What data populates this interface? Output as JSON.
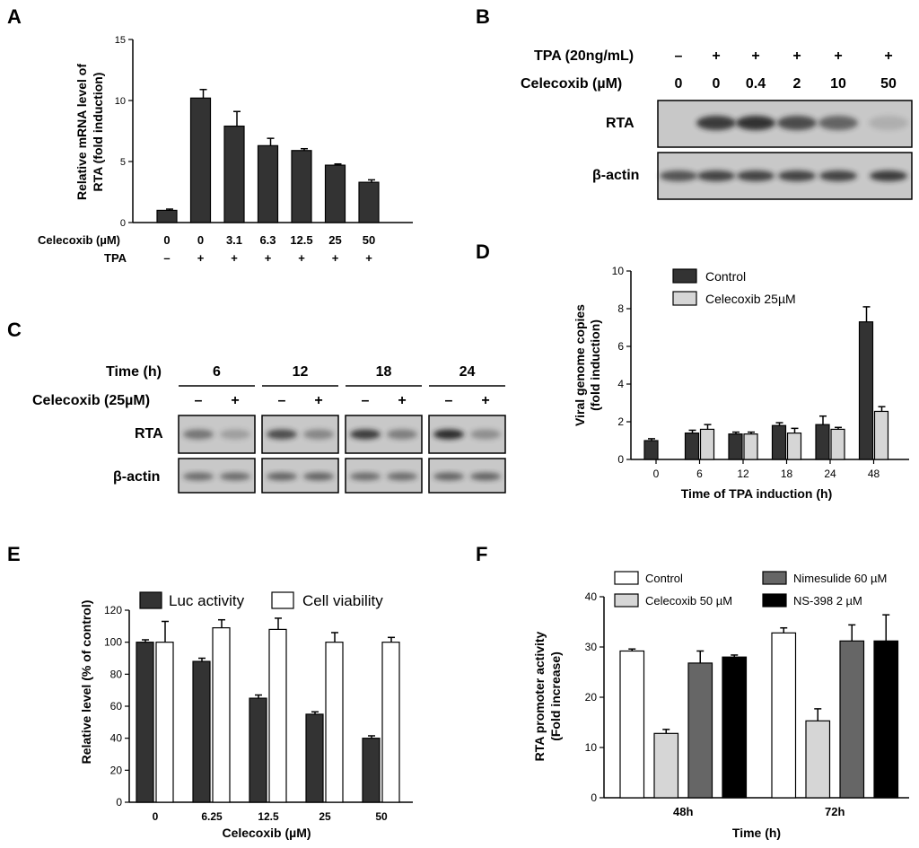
{
  "panels": {
    "A": "A",
    "B": "B",
    "C": "C",
    "D": "D",
    "E": "E",
    "F": "F"
  },
  "colors": {
    "dark_bar": "#333333",
    "light_bar": "#d6d6d6",
    "mid_bar": "#666666",
    "black_bar": "#000000",
    "white_bar": "#ffffff",
    "blot_bg": "#c8c8c8",
    "band": "#222222"
  },
  "chart_data": [
    {
      "panel": "A",
      "type": "bar",
      "ylabel": "Relative mRNA level of RTA (fold induction)",
      "ylabel_lines": [
        "Relative mRNA level of",
        "RTA (fold induction)"
      ],
      "yticks": [
        "0",
        "5",
        "10",
        "15"
      ],
      "ylim": [
        0,
        15
      ],
      "row_labels": [
        "Celecoxib (µM)",
        "TPA"
      ],
      "celecoxib": [
        "0",
        "0",
        "3.1",
        "6.3",
        "12.5",
        "25",
        "50"
      ],
      "tpa": [
        "–",
        "+",
        "+",
        "+",
        "+",
        "+",
        "+"
      ],
      "values": [
        1.0,
        10.2,
        7.9,
        6.3,
        5.9,
        4.7,
        3.3
      ],
      "errors": [
        0.1,
        0.7,
        1.2,
        0.6,
        0.15,
        0.1,
        0.2
      ]
    },
    {
      "panel": "D",
      "type": "bar",
      "ylabel": "Viral genome copies (fold induction)",
      "ylabel_lines": [
        "Viral genome copies",
        "(fold induction)"
      ],
      "xlabel": "Time of TPA induction (h)",
      "yticks": [
        "0",
        "2",
        "4",
        "6",
        "8",
        "10"
      ],
      "ylim": [
        0,
        10
      ],
      "categories": [
        "0",
        "6",
        "12",
        "18",
        "24",
        "48"
      ],
      "legend": [
        "Control",
        "Celecoxib 25µM"
      ],
      "series": [
        {
          "name": "Control",
          "values": [
            1.0,
            1.4,
            1.35,
            1.8,
            1.85,
            7.3
          ],
          "errors": [
            0.1,
            0.15,
            0.1,
            0.15,
            0.45,
            0.8
          ]
        },
        {
          "name": "Celecoxib 25µM",
          "values": [
            null,
            1.6,
            1.35,
            1.4,
            1.6,
            2.55
          ],
          "errors": [
            null,
            0.25,
            0.1,
            0.25,
            0.1,
            0.25
          ]
        }
      ]
    },
    {
      "panel": "E",
      "type": "bar",
      "ylabel": "Relative level (% of control)",
      "xlabel": "Celecoxib (µM)",
      "yticks": [
        "0",
        "20",
        "40",
        "60",
        "80",
        "100",
        "120"
      ],
      "ylim": [
        0,
        120
      ],
      "categories": [
        "0",
        "6.25",
        "12.5",
        "25",
        "50"
      ],
      "legend": [
        "Luc activity",
        "Cell viability"
      ],
      "series": [
        {
          "name": "Luc activity",
          "values": [
            100,
            88,
            65,
            55,
            40
          ],
          "errors": [
            1.5,
            2,
            2,
            1.5,
            1.5
          ]
        },
        {
          "name": "Cell viability",
          "values": [
            100,
            109,
            108,
            100,
            100
          ],
          "errors": [
            13,
            5,
            7,
            6,
            3
          ]
        }
      ]
    },
    {
      "panel": "F",
      "type": "bar",
      "ylabel": "RTA promoter activity (Fold increase)",
      "ylabel_lines": [
        "RTA promoter activity",
        "(Fold increase)"
      ],
      "xlabel": "Time (h)",
      "yticks": [
        "0",
        "10",
        "20",
        "30",
        "40"
      ],
      "ylim": [
        0,
        40
      ],
      "categories": [
        "48h",
        "72h"
      ],
      "legend": [
        "Control",
        "Celecoxib 50 µM",
        "Nimesulide 60 µM",
        "NS-398 2 µM"
      ],
      "series": [
        {
          "name": "Control",
          "values": [
            29.2,
            32.8
          ],
          "errors": [
            0.4,
            1.0
          ]
        },
        {
          "name": "Celecoxib 50 µM",
          "values": [
            12.8,
            15.3
          ],
          "errors": [
            0.8,
            2.4
          ]
        },
        {
          "name": "Nimesulide 60 µM",
          "values": [
            26.8,
            31.2
          ],
          "errors": [
            2.4,
            3.2
          ]
        },
        {
          "name": "NS-398 2 µM",
          "values": [
            28.0,
            31.2
          ],
          "errors": [
            0.4,
            5.2
          ]
        }
      ]
    }
  ],
  "blotB": {
    "row1_label": "TPA (20ng/mL)",
    "row2_label": "Celecoxib (µM)",
    "tpa": [
      "–",
      "+",
      "+",
      "+",
      "+",
      "+"
    ],
    "celecoxib": [
      "0",
      "0",
      "0.4",
      "2",
      "10",
      "50"
    ],
    "band_labels": [
      "RTA",
      "β-actin"
    ],
    "rta_intensity": [
      0.0,
      0.85,
      0.9,
      0.75,
      0.6,
      0.15
    ],
    "actin_intensity": [
      0.7,
      0.8,
      0.8,
      0.8,
      0.8,
      0.85
    ]
  },
  "blotC": {
    "row1_label": "Time (h)",
    "row2_label": "Celecoxib (25µM)",
    "times": [
      "6",
      "12",
      "18",
      "24"
    ],
    "signs": [
      "–",
      "+"
    ],
    "band_labels": [
      "RTA",
      "β-actin"
    ],
    "rta_intensity": [
      [
        0.5,
        0.25
      ],
      [
        0.75,
        0.4
      ],
      [
        0.85,
        0.45
      ],
      [
        0.95,
        0.35
      ]
    ],
    "actin_intensity": [
      [
        0.55,
        0.55
      ],
      [
        0.6,
        0.6
      ],
      [
        0.55,
        0.55
      ],
      [
        0.6,
        0.6
      ]
    ]
  }
}
